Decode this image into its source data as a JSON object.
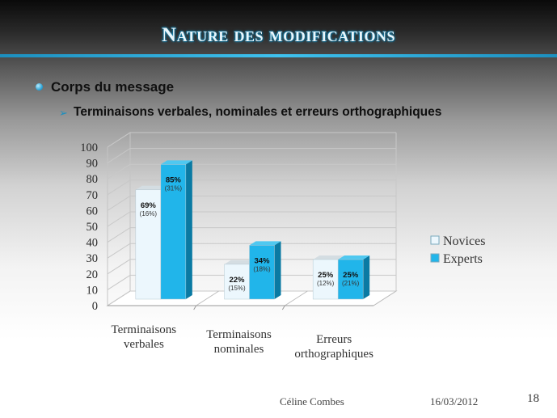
{
  "slide": {
    "title": "Nature des modifications",
    "bullet_level1": "Corps du message",
    "bullet_level2": "Terminaisons verbales, nominales et erreurs orthographiques",
    "footer_author": "Céline Combes",
    "footer_date": "16/03/2012",
    "page_number": "18"
  },
  "colors": {
    "title_rule": "#2aa7d6",
    "novices": "#e6f5fc",
    "experts": "#1fb3e8"
  },
  "chart_data": {
    "type": "bar",
    "categories": [
      [
        "Terminaisons",
        "verbales"
      ],
      [
        "Terminaisons",
        "nominales"
      ],
      [
        "Erreurs",
        "orthographiques"
      ]
    ],
    "series": [
      {
        "name": "Novices",
        "values": [
          69,
          22,
          25
        ],
        "labels": [
          "69%",
          "22%",
          "25%"
        ],
        "sublabels": [
          "(16%)",
          "(15%)",
          "(12%)"
        ]
      },
      {
        "name": "Experts",
        "values": [
          85,
          34,
          25
        ],
        "labels": [
          "85%",
          "34%",
          "25%"
        ],
        "sublabels": [
          "(31%)",
          "(18%)",
          "(21%)"
        ]
      }
    ],
    "ylim": [
      0,
      100
    ],
    "yticks": [
      0,
      10,
      20,
      30,
      40,
      50,
      60,
      70,
      80,
      90,
      100
    ],
    "grid": true,
    "legend_position": "right",
    "style": "3d-clustered"
  }
}
